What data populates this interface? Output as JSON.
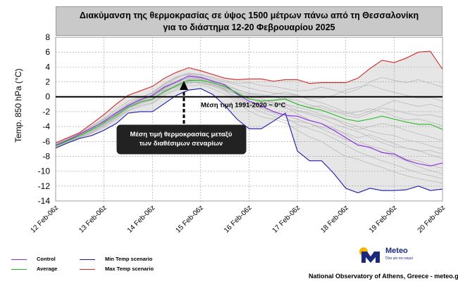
{
  "chart_data": {
    "type": "line",
    "title_lines": [
      "Διακύμανση της θερμοκρασίας σε ύψος 1500 μέτρων πάνω από τη Θεσσαλονίκη",
      "για το διάστημα  12-20 Φεβρουαρίου 2025"
    ],
    "ylabel": "Temp. 850 hPa (°C)",
    "ylim": [
      -14,
      8
    ],
    "yticks": [
      "8",
      "6",
      "4",
      "2",
      "0",
      "-2",
      "-4",
      "-6",
      "-8",
      "-10",
      "-12",
      "-14"
    ],
    "xlim": [
      0,
      8
    ],
    "xticks": [
      "12 Feb-06z",
      "13 Feb-06z",
      "14 Feb-06z",
      "15 Feb-06z",
      "16 Feb-06z",
      "17 Feb-06z",
      "18 Feb-06z",
      "19 Feb-06z",
      "20 Feb-06z"
    ],
    "grid": true,
    "x": [
      0,
      0.25,
      0.5,
      0.75,
      1,
      1.25,
      1.5,
      1.75,
      2,
      2.25,
      2.5,
      2.75,
      3,
      3.25,
      3.5,
      3.75,
      4,
      4.25,
      4.5,
      4.75,
      5,
      5.25,
      5.5,
      5.75,
      6,
      6.25,
      6.5,
      6.75,
      7,
      7.25,
      7.5,
      7.75,
      8
    ],
    "series": [
      {
        "name": "Max Temp scenario",
        "color": "#d62728",
        "values": [
          -6.2,
          -5.5,
          -4.8,
          -3.6,
          -2.4,
          -1.0,
          0.2,
          0.8,
          1.4,
          2.5,
          3.3,
          3.9,
          3.5,
          3.0,
          2.5,
          2.3,
          2.4,
          2.4,
          2.1,
          2.3,
          2.3,
          1.8,
          1.9,
          1.9,
          1.9,
          2.5,
          3.8,
          4.9,
          4.6,
          5.2,
          6.0,
          6.1,
          3.7
        ]
      },
      {
        "name": "Min Temp scenario",
        "color": "#1a1aaa",
        "values": [
          -6.9,
          -6.2,
          -5.6,
          -5.2,
          -4.5,
          -3.6,
          -2.2,
          -2.0,
          -2.0,
          -0.9,
          0.2,
          0.9,
          1.1,
          0.3,
          -1.2,
          -3.0,
          -4.3,
          -4.3,
          -3.3,
          -2.2,
          -7.3,
          -8.6,
          -8.6,
          -10.3,
          -12.3,
          -12.9,
          -12.3,
          -12.6,
          -12.6,
          -12.5,
          -12.0,
          -12.6,
          -12.4
        ]
      },
      {
        "name": "Average",
        "color": "#22bb22",
        "values": [
          -6.6,
          -5.9,
          -5.2,
          -4.4,
          -3.5,
          -2.5,
          -1.4,
          -0.7,
          -0.3,
          0.7,
          1.5,
          2.2,
          2.2,
          1.9,
          1.4,
          0.5,
          -0.3,
          -0.6,
          -0.5,
          -0.3,
          -1.0,
          -1.5,
          -1.8,
          -2.4,
          -3.0,
          -3.3,
          -3.0,
          -2.6,
          -3.0,
          -3.4,
          -3.7,
          -3.7,
          -4.4
        ]
      },
      {
        "name": "Control",
        "color": "#8a2be2",
        "values": [
          -6.5,
          -5.8,
          -5.0,
          -4.2,
          -3.3,
          -2.2,
          -1.2,
          -0.4,
          0.2,
          1.3,
          2.0,
          2.8,
          2.6,
          2.1,
          1.6,
          0.4,
          -0.6,
          -1.2,
          -2.0,
          -2.5,
          -2.6,
          -3.2,
          -3.6,
          -4.5,
          -5.5,
          -6.5,
          -6.8,
          -7.5,
          -7.7,
          -8.5,
          -9.0,
          -9.3,
          -8.9
        ]
      }
    ],
    "members_color": "#b4b4b4",
    "members": [
      [
        -6.7,
        -6.0,
        -5.4,
        -4.5,
        -3.6,
        -2.4,
        -1.2,
        -0.3,
        0.2,
        1.4,
        2.2,
        2.7,
        2.5,
        2.0,
        1.3,
        0.6,
        0.0,
        -0.5,
        -0.4,
        -0.2,
        -0.5,
        -1.1,
        -1.5,
        -2.0,
        -2.5,
        -2.8,
        -2.2,
        -1.5,
        -1.8,
        -2.2,
        -2.5,
        -2.4,
        -2.8
      ],
      [
        -6.4,
        -5.7,
        -5.0,
        -4.0,
        -3.1,
        -2.1,
        -1.0,
        -0.5,
        0.0,
        1.0,
        1.8,
        2.3,
        2.4,
        1.7,
        0.9,
        -0.1,
        -0.8,
        -1.1,
        -1.3,
        -1.0,
        -1.9,
        -2.4,
        -2.9,
        -3.6,
        -4.2,
        -4.7,
        -5.4,
        -6.2,
        -6.7,
        -6.9,
        -7.3,
        -7.2,
        -7.7
      ],
      [
        -6.8,
        -6.1,
        -5.5,
        -4.8,
        -3.9,
        -2.9,
        -1.8,
        -1.1,
        -0.8,
        0.4,
        1.1,
        1.8,
        2.0,
        1.6,
        1.1,
        0.2,
        -0.9,
        -1.5,
        -1.9,
        -2.5,
        -3.0,
        -3.6,
        -4.3,
        -5.0,
        -5.8,
        -6.3,
        -6.9,
        -7.4,
        -8.0,
        -8.6,
        -9.4,
        -9.9,
        -10.4
      ],
      [
        -6.3,
        -5.6,
        -4.9,
        -3.9,
        -2.9,
        -1.7,
        -0.6,
        0.0,
        0.4,
        1.5,
        2.5,
        3.1,
        2.9,
        2.4,
        2.0,
        1.6,
        1.2,
        0.8,
        0.5,
        0.3,
        0.2,
        -0.3,
        -0.2,
        0.2,
        0.9,
        1.3,
        1.6,
        1.0,
        0.6,
        0.2,
        -0.2,
        -0.1,
        -0.6
      ],
      [
        -6.6,
        -6.0,
        -5.3,
        -4.6,
        -3.8,
        -2.7,
        -1.6,
        -0.9,
        -0.5,
        0.6,
        1.4,
        2.0,
        1.8,
        1.4,
        0.8,
        -0.5,
        -1.3,
        -2.0,
        -2.6,
        -3.2,
        -3.3,
        -3.6,
        -4.1,
        -4.4,
        -4.9,
        -5.5,
        -5.1,
        -5.7,
        -6.3,
        -6.9,
        -7.2,
        -7.8,
        -8.3
      ],
      [
        -6.5,
        -5.8,
        -5.2,
        -4.3,
        -3.2,
        -2.3,
        -1.1,
        -0.2,
        0.5,
        1.7,
        2.6,
        3.0,
        2.7,
        2.2,
        1.7,
        1.0,
        0.4,
        0.1,
        0.3,
        0.6,
        0.2,
        -0.4,
        -0.8,
        -1.4,
        -2.1,
        -2.5,
        -1.9,
        -1.2,
        -0.5,
        -0.9,
        -1.3,
        -1.0,
        -1.5
      ],
      [
        -6.7,
        -6.0,
        -5.4,
        -4.7,
        -3.8,
        -2.8,
        -1.6,
        -0.8,
        -0.4,
        0.8,
        1.6,
        2.4,
        2.3,
        1.9,
        1.3,
        0.3,
        -0.6,
        -0.9,
        -0.7,
        -1.4,
        -2.3,
        -3.1,
        -3.6,
        -4.2,
        -5.1,
        -6.0,
        -6.6,
        -7.0,
        -7.6,
        -8.4,
        -8.6,
        -9.2,
        -9.6
      ],
      [
        -6.4,
        -5.7,
        -5.1,
        -4.2,
        -3.3,
        -2.2,
        -1.3,
        -0.6,
        0.1,
        1.1,
        1.9,
        2.6,
        2.4,
        1.8,
        1.2,
        0.7,
        0.2,
        -0.2,
        -0.9,
        -1.6,
        -1.8,
        -2.2,
        -2.6,
        -3.0,
        -3.8,
        -4.4,
        -4.0,
        -3.6,
        -3.9,
        -4.5,
        -5.0,
        -5.4,
        -5.9
      ],
      [
        -6.6,
        -5.9,
        -5.3,
        -4.4,
        -3.5,
        -2.5,
        -1.4,
        -0.7,
        -0.2,
        0.9,
        1.5,
        2.1,
        2.0,
        1.7,
        1.5,
        0.9,
        0.5,
        0.3,
        0.0,
        -0.4,
        -1.0,
        -1.4,
        -1.2,
        -1.8,
        -2.3,
        -2.0,
        -1.6,
        -2.0,
        -2.6,
        -3.1,
        -3.0,
        -3.4,
        -3.9
      ],
      [
        -6.8,
        -6.1,
        -5.5,
        -4.9,
        -4.1,
        -3.1,
        -1.9,
        -1.3,
        -0.9,
        0.2,
        0.9,
        1.5,
        1.6,
        1.1,
        0.4,
        -0.8,
        -1.9,
        -2.7,
        -3.0,
        -3.5,
        -4.5,
        -5.4,
        -6.0,
        -7.1,
        -8.0,
        -8.4,
        -9.0,
        -9.5,
        -10.1,
        -10.6,
        -11.0,
        -11.3,
        -11.6
      ],
      [
        -6.5,
        -5.8,
        -5.1,
        -4.1,
        -3.0,
        -2.0,
        -0.9,
        -0.1,
        0.6,
        1.8,
        2.7,
        3.2,
        3.0,
        2.6,
        2.2,
        1.8,
        1.9,
        1.5,
        1.4,
        1.1,
        0.8,
        0.9,
        1.3,
        0.9,
        0.5,
        1.0,
        2.0,
        2.6,
        2.2,
        1.9,
        2.3,
        1.8,
        1.3
      ],
      [
        -6.6,
        -5.9,
        -5.2,
        -4.4,
        -3.4,
        -2.4,
        -1.3,
        -0.6,
        0.0,
        1.2,
        2.0,
        2.5,
        2.3,
        1.9,
        1.0,
        -0.2,
        -1.1,
        -1.6,
        -2.2,
        -2.8,
        -3.7,
        -4.3,
        -4.8,
        -5.6,
        -6.5,
        -7.4,
        -8.0,
        -8.6,
        -9.1,
        -9.7,
        -10.2,
        -10.6,
        -11.0
      ],
      [
        -6.7,
        -6.0,
        -5.3,
        -4.6,
        -3.7,
        -2.6,
        -1.5,
        -0.8,
        -0.3,
        0.7,
        1.3,
        1.9,
        1.9,
        1.5,
        1.0,
        0.4,
        -0.2,
        -0.7,
        -1.1,
        -1.0,
        -1.4,
        -1.8,
        -2.4,
        -2.9,
        -3.5,
        -4.0,
        -4.6,
        -5.0,
        -5.2,
        -5.8,
        -6.1,
        -6.6,
        -7.0
      ]
    ],
    "reference_line": {
      "y": 0,
      "label": "Μέση τιμή 1991-2020  ~ 0°C"
    },
    "annotation": {
      "lines": [
        "Μέση τιμή θερμοκρασίας μεταξύ",
        "των διαθέσιμων σεναρίων"
      ]
    },
    "legend": [
      {
        "name": "Control",
        "color": "#8a2be2"
      },
      {
        "name": "Average",
        "color": "#22bb22"
      },
      {
        "name": "Min Temp scenario",
        "color": "#1a1aaa"
      },
      {
        "name": "Max Temp scenario",
        "color": "#d62728"
      }
    ],
    "legend_position": "bottom-left",
    "footer": "National Observatory of Athens, Greece - meteo.gr",
    "logo": {
      "name": "Meteo",
      "tagline": "Όλα για τον καιρό"
    }
  }
}
